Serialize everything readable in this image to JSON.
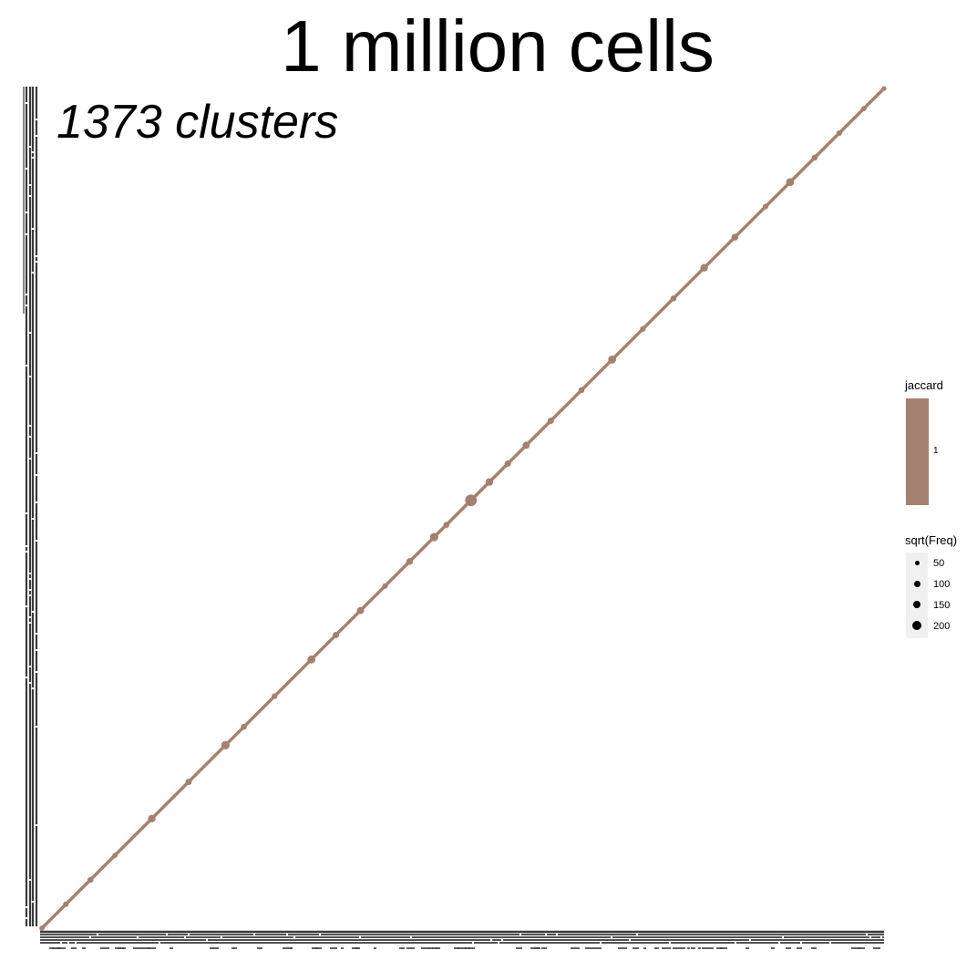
{
  "title": "1 million cells",
  "subtitle": "1373 clusters",
  "chart_data": {
    "type": "scatter",
    "title": "1 million cells",
    "subtitle": "1373 clusters",
    "xlabel": "",
    "ylabel": "",
    "xlim": [
      1,
      1373
    ],
    "ylim": [
      1,
      1373
    ],
    "n_categories": 1373,
    "grid": false,
    "description_series": "diagonal",
    "series": [
      {
        "x": [
          1,
          40,
          80,
          120,
          180,
          240,
          300,
          330,
          380,
          440,
          480,
          520,
          560,
          600,
          640,
          660,
          700,
          730,
          760,
          790,
          830,
          880,
          930,
          980,
          1030,
          1080,
          1130,
          1180,
          1220,
          1260,
          1300,
          1340,
          1373
        ],
        "y": [
          1,
          40,
          80,
          120,
          180,
          240,
          300,
          330,
          380,
          440,
          480,
          520,
          560,
          600,
          640,
          660,
          700,
          730,
          760,
          790,
          830,
          880,
          930,
          980,
          1030,
          1080,
          1130,
          1180,
          1220,
          1260,
          1300,
          1340,
          1373
        ],
        "sqrt_freq": [
          60,
          70,
          80,
          60,
          120,
          90,
          140,
          80,
          70,
          130,
          90,
          110,
          70,
          100,
          140,
          80,
          220,
          120,
          90,
          110,
          90,
          80,
          130,
          70,
          80,
          120,
          100,
          70,
          130,
          80,
          70,
          60,
          50
        ],
        "jaccard": [
          1,
          1,
          1,
          1,
          1,
          1,
          1,
          1,
          1,
          1,
          1,
          1,
          1,
          1,
          1,
          1,
          1,
          1,
          1,
          1,
          1,
          1,
          1,
          1,
          1,
          1,
          1,
          1,
          1,
          1,
          1,
          1,
          1
        ]
      }
    ],
    "legend": {
      "placement": "right",
      "color": {
        "title": "jaccard",
        "labels": [
          "1"
        ],
        "color": "#a6806f"
      },
      "size": {
        "title": "sqrt(Freq)",
        "labels": [
          "50",
          "100",
          "150",
          "200"
        ],
        "values": [
          50,
          100,
          150,
          200
        ]
      }
    }
  },
  "colors": {
    "point": "#a6806f",
    "axis_ticks": "#3a3a3a"
  }
}
